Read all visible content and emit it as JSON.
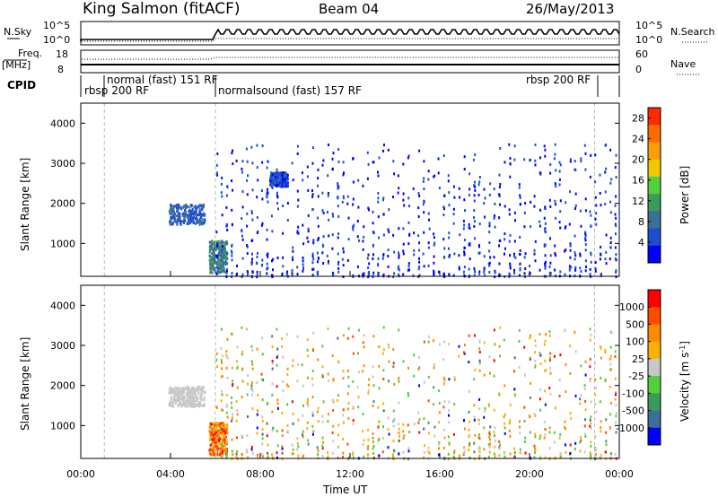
{
  "header": {
    "station": "King Salmon (fitACF)",
    "beam": "Beam 04",
    "date": "26/May/2013"
  },
  "top_panels": {
    "nsky": {
      "left_label": "N.Sky",
      "right_label": "N.Search",
      "left_ticks": [
        "10^5",
        "10^0"
      ],
      "right_ticks": [
        "10^5",
        "10^0"
      ]
    },
    "freq": {
      "left_label_top": "Freq.",
      "left_label_bottom": "[MHz]",
      "right_label": "Nave",
      "left_ticks": [
        "18",
        "8"
      ],
      "right_ticks": [
        "60",
        "0"
      ]
    },
    "cpid": {
      "label": "CPID",
      "segments": [
        {
          "label": "rbsp 200 RF",
          "start_hour": 0.0,
          "end_hour": 1.05
        },
        {
          "label": "normal (fast) 151 RF",
          "start_hour": 1.05,
          "end_hour": 6.0
        },
        {
          "label": "normalsound (fast) 157 RF",
          "start_hour": 6.0,
          "end_hour": 22.9
        },
        {
          "label": "rbsp 200 RF",
          "start_hour": 22.9,
          "end_hour": 24.0
        }
      ]
    }
  },
  "colors": {
    "power_scale": [
      "#0000ff",
      "#1c4fd0",
      "#3c6e9a",
      "#3c9a5a",
      "#52d03c",
      "#f0c800",
      "#ff9e00",
      "#ff6a00",
      "#ff2a00"
    ],
    "velocity_scale": [
      "#ff0000",
      "#ff4a00",
      "#ff8a00",
      "#ffb000",
      "#c8c8c8",
      "#52d03c",
      "#3c9a5a",
      "#3c6e9a",
      "#0000ff"
    ],
    "ground_scatter": "#c8c8c8"
  },
  "chart_data": [
    {
      "type": "heatmap",
      "title": "Power",
      "xlabel": "",
      "ylabel": "Slant Range [km]",
      "x_ticks": [
        "00:00",
        "04:00",
        "08:00",
        "12:00",
        "16:00",
        "20:00",
        "00:00"
      ],
      "xlim_hours": [
        0,
        24
      ],
      "ylim_km": [
        180,
        4500
      ],
      "y_ticks": [
        "1000",
        "2000",
        "3000",
        "4000"
      ],
      "colorbar": {
        "label": "Power [dB]",
        "range": [
          0,
          30
        ],
        "ticks": [
          "4",
          "8",
          "12",
          "16",
          "20",
          "24",
          "28"
        ]
      },
      "features": [
        {
          "region": "main echo band",
          "x_hours": [
            3.9,
            5.5
          ],
          "y_km": [
            1500,
            2000
          ],
          "value_db": 10
        },
        {
          "region": "near range patch",
          "x_hours": [
            5.7,
            6.5
          ],
          "y_km": [
            300,
            1100
          ],
          "value_db": 14
        },
        {
          "region": "far patch",
          "x_hours": [
            8.4,
            9.2
          ],
          "y_km": [
            2450,
            2800
          ],
          "value_db": 8
        },
        {
          "region": "striations",
          "x_hours": [
            6.0,
            24.0
          ],
          "y_km": [
            200,
            3500
          ],
          "value_db": 6
        }
      ]
    },
    {
      "type": "heatmap",
      "title": "Velocity",
      "xlabel": "Time UT",
      "ylabel": "Slant Range [km]",
      "x_ticks": [
        "00:00",
        "04:00",
        "08:00",
        "12:00",
        "16:00",
        "20:00",
        "00:00"
      ],
      "xlim_hours": [
        0,
        24
      ],
      "ylim_km": [
        180,
        4500
      ],
      "y_ticks": [
        "1000",
        "2000",
        "3000",
        "4000"
      ],
      "colorbar": {
        "label": "Velocity [m s^-1]",
        "range": [
          -1000,
          1000
        ],
        "ticks": [
          "1000",
          "500",
          "100",
          "25",
          "-25",
          "-100",
          "-500",
          "-1000"
        ]
      },
      "features": [
        {
          "region": "ground scatter band",
          "x_hours": [
            3.9,
            5.5
          ],
          "y_km": [
            1500,
            2000
          ],
          "value_ms": 0
        },
        {
          "region": "near range patch",
          "x_hours": [
            5.7,
            6.5
          ],
          "y_km": [
            300,
            1100
          ],
          "value_ms": -400
        },
        {
          "region": "striations",
          "x_hours": [
            6.0,
            24.0
          ],
          "y_km": [
            200,
            3500
          ],
          "value_ms": -100
        }
      ]
    }
  ]
}
